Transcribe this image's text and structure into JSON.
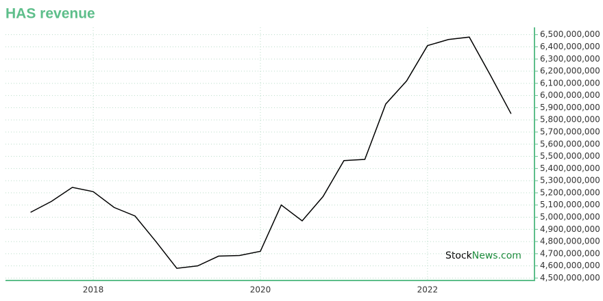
{
  "chart_data": {
    "type": "line",
    "title": "HAS revenue",
    "watermark": [
      "Stock",
      "News.com"
    ],
    "x": [
      2017.25,
      2017.5,
      2017.75,
      2018.0,
      2018.25,
      2018.5,
      2018.75,
      2019.0,
      2019.25,
      2019.5,
      2019.75,
      2020.0,
      2020.25,
      2020.5,
      2020.75,
      2021.0,
      2021.25,
      2021.5,
      2021.75,
      2022.0,
      2022.25,
      2022.5,
      2022.75,
      2023.0
    ],
    "series": [
      {
        "name": "revenue",
        "color": "#000000",
        "values": [
          5040000000,
          5130000000,
          5245000000,
          5210000000,
          5080000000,
          5010000000,
          4800000000,
          4580000000,
          4600000000,
          4680000000,
          4685000000,
          4720000000,
          5100000000,
          4970000000,
          5170000000,
          5465000000,
          5475000000,
          5930000000,
          6120000000,
          6410000000,
          6460000000,
          6480000000,
          6170000000,
          5850000000
        ]
      }
    ],
    "xlim": [
      2016.95,
      2023.28
    ],
    "xticks": [
      2018,
      2020,
      2022
    ],
    "ylim": [
      4480000000,
      6560000000
    ],
    "yticks": [
      {
        "value": 4500000000,
        "label": "4,500,000,000"
      },
      {
        "value": 4600000000,
        "label": "4,600,000,000"
      },
      {
        "value": 4700000000,
        "label": "4,700,000,000"
      },
      {
        "value": 4800000000,
        "label": "4,800,000,000"
      },
      {
        "value": 4900000000,
        "label": "4,900,000,000"
      },
      {
        "value": 5000000000,
        "label": "5,000,000,000"
      },
      {
        "value": 5100000000,
        "label": "5,100,000,000"
      },
      {
        "value": 5200000000,
        "label": "5,200,000,000"
      },
      {
        "value": 5300000000,
        "label": "5,300,000,000"
      },
      {
        "value": 5400000000,
        "label": "5,400,000,000"
      },
      {
        "value": 5500000000,
        "label": "5,500,000,000"
      },
      {
        "value": 5600000000,
        "label": "5,600,000,000"
      },
      {
        "value": 5700000000,
        "label": "5,700,000,000"
      },
      {
        "value": 5800000000,
        "label": "5,800,000,000"
      },
      {
        "value": 5900000000,
        "label": "5,900,000,000"
      },
      {
        "value": 6000000000,
        "label": "6,000,000,000"
      },
      {
        "value": 6100000000,
        "label": "6,100,000,000"
      },
      {
        "value": 6200000000,
        "label": "6,200,000,000"
      },
      {
        "value": 6300000000,
        "label": "6,300,000,000"
      },
      {
        "value": 6400000000,
        "label": "6,400,000,000"
      },
      {
        "value": 6500000000,
        "label": "6,500,000,000"
      }
    ],
    "grid": true,
    "axis_color": "#5dbe8a"
  }
}
